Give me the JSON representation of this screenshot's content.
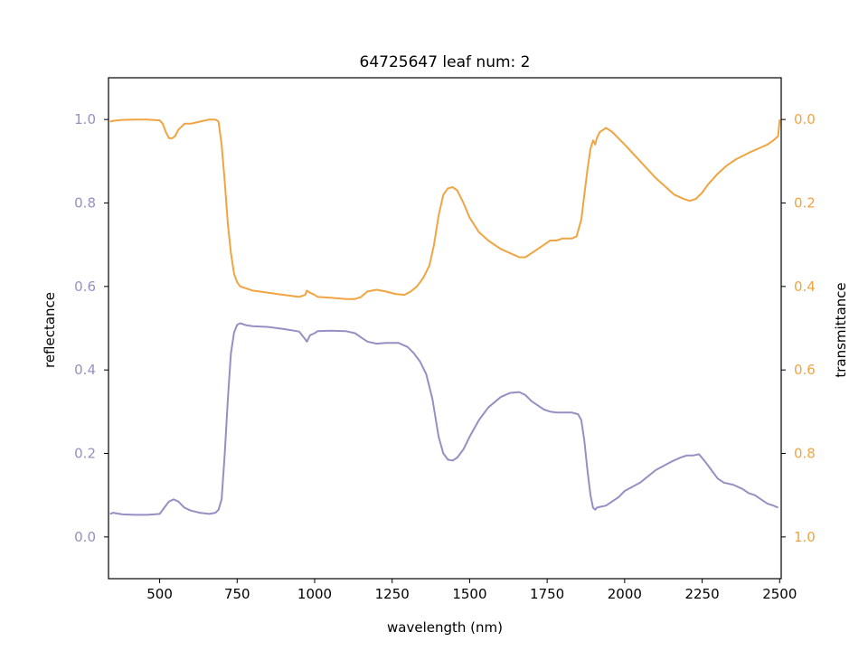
{
  "chart_data": {
    "type": "line",
    "title": "64725647 leaf num: 2",
    "xlabel": "wavelength (nm)",
    "xlim": [
      335,
      2505
    ],
    "xticks": [
      500,
      750,
      1000,
      1250,
      1500,
      1750,
      2000,
      2250,
      2500
    ],
    "grid": false,
    "legend": "none",
    "left_axis": {
      "label": "reflectance",
      "color": "#9590c4",
      "ylim": [
        -0.1,
        1.1
      ],
      "ticks": [
        0.0,
        0.2,
        0.4,
        0.6,
        0.8,
        1.0
      ],
      "inverted": false
    },
    "right_axis": {
      "label": "transmittance",
      "color": "#f0a442",
      "ylim": [
        -0.1,
        1.1
      ],
      "ticks": [
        0.0,
        0.2,
        0.4,
        0.6,
        0.8,
        1.0
      ],
      "inverted": true
    },
    "series": [
      {
        "axis": "left",
        "color": "#9590c4",
        "x": [
          340,
          350,
          380,
          420,
          460,
          500,
          515,
          530,
          545,
          560,
          580,
          600,
          630,
          660,
          680,
          690,
          700,
          710,
          720,
          730,
          740,
          750,
          760,
          780,
          800,
          850,
          900,
          950,
          965,
          975,
          985,
          1000,
          1010,
          1050,
          1100,
          1130,
          1150,
          1170,
          1200,
          1230,
          1270,
          1300,
          1320,
          1340,
          1360,
          1380,
          1400,
          1415,
          1430,
          1445,
          1460,
          1480,
          1500,
          1530,
          1560,
          1600,
          1630,
          1660,
          1680,
          1700,
          1720,
          1740,
          1760,
          1780,
          1800,
          1830,
          1850,
          1860,
          1870,
          1880,
          1890,
          1898,
          1905,
          1910,
          1920,
          1940,
          1960,
          1980,
          2000,
          2050,
          2100,
          2150,
          2180,
          2200,
          2220,
          2240,
          2260,
          2280,
          2300,
          2320,
          2350,
          2380,
          2400,
          2420,
          2440,
          2460,
          2480,
          2495
        ],
        "y": [
          0.055,
          0.058,
          0.054,
          0.053,
          0.053,
          0.055,
          0.07,
          0.085,
          0.09,
          0.085,
          0.07,
          0.063,
          0.058,
          0.055,
          0.058,
          0.065,
          0.09,
          0.2,
          0.33,
          0.44,
          0.49,
          0.508,
          0.512,
          0.507,
          0.505,
          0.503,
          0.498,
          0.492,
          0.478,
          0.468,
          0.483,
          0.488,
          0.493,
          0.494,
          0.493,
          0.488,
          0.478,
          0.468,
          0.463,
          0.465,
          0.465,
          0.455,
          0.44,
          0.42,
          0.39,
          0.33,
          0.24,
          0.2,
          0.185,
          0.183,
          0.19,
          0.21,
          0.24,
          0.28,
          0.31,
          0.335,
          0.345,
          0.347,
          0.34,
          0.325,
          0.315,
          0.305,
          0.3,
          0.298,
          0.298,
          0.298,
          0.294,
          0.28,
          0.23,
          0.16,
          0.1,
          0.07,
          0.065,
          0.07,
          0.072,
          0.075,
          0.085,
          0.095,
          0.11,
          0.13,
          0.16,
          0.18,
          0.19,
          0.195,
          0.195,
          0.198,
          0.18,
          0.16,
          0.14,
          0.13,
          0.125,
          0.115,
          0.105,
          0.1,
          0.09,
          0.08,
          0.075,
          0.07
        ]
      },
      {
        "axis": "right",
        "color": "#f0a442",
        "x": [
          340,
          350,
          380,
          420,
          460,
          500,
          510,
          520,
          530,
          540,
          550,
          560,
          580,
          600,
          630,
          660,
          680,
          690,
          700,
          710,
          720,
          730,
          740,
          750,
          760,
          780,
          800,
          850,
          900,
          950,
          970,
          975,
          985,
          1000,
          1010,
          1050,
          1100,
          1130,
          1150,
          1170,
          1200,
          1230,
          1260,
          1290,
          1310,
          1330,
          1350,
          1370,
          1385,
          1400,
          1415,
          1430,
          1445,
          1460,
          1480,
          1500,
          1530,
          1560,
          1600,
          1630,
          1660,
          1680,
          1700,
          1720,
          1740,
          1760,
          1780,
          1800,
          1830,
          1845,
          1860,
          1870,
          1880,
          1890,
          1898,
          1905,
          1910,
          1920,
          1940,
          1960,
          1980,
          2000,
          2050,
          2100,
          2130,
          2160,
          2190,
          2210,
          2230,
          2250,
          2270,
          2300,
          2330,
          2360,
          2400,
          2430,
          2460,
          2480,
          2495,
          2500
        ],
        "y": [
          0.005,
          0.003,
          0.001,
          0.0,
          0.0,
          0.002,
          0.01,
          0.03,
          0.045,
          0.045,
          0.04,
          0.025,
          0.01,
          0.01,
          0.005,
          0.0,
          0.0,
          0.005,
          0.06,
          0.15,
          0.25,
          0.32,
          0.37,
          0.39,
          0.4,
          0.405,
          0.41,
          0.415,
          0.42,
          0.425,
          0.42,
          0.41,
          0.415,
          0.42,
          0.425,
          0.427,
          0.43,
          0.43,
          0.425,
          0.412,
          0.408,
          0.412,
          0.418,
          0.42,
          0.412,
          0.4,
          0.38,
          0.35,
          0.3,
          0.23,
          0.18,
          0.165,
          0.162,
          0.17,
          0.2,
          0.235,
          0.27,
          0.29,
          0.31,
          0.32,
          0.33,
          0.33,
          0.32,
          0.31,
          0.3,
          0.29,
          0.29,
          0.285,
          0.285,
          0.28,
          0.24,
          0.18,
          0.12,
          0.07,
          0.05,
          0.06,
          0.045,
          0.03,
          0.02,
          0.03,
          0.045,
          0.06,
          0.1,
          0.14,
          0.16,
          0.18,
          0.19,
          0.195,
          0.19,
          0.175,
          0.155,
          0.13,
          0.11,
          0.095,
          0.08,
          0.07,
          0.06,
          0.05,
          0.04,
          0.0
        ]
      }
    ]
  }
}
